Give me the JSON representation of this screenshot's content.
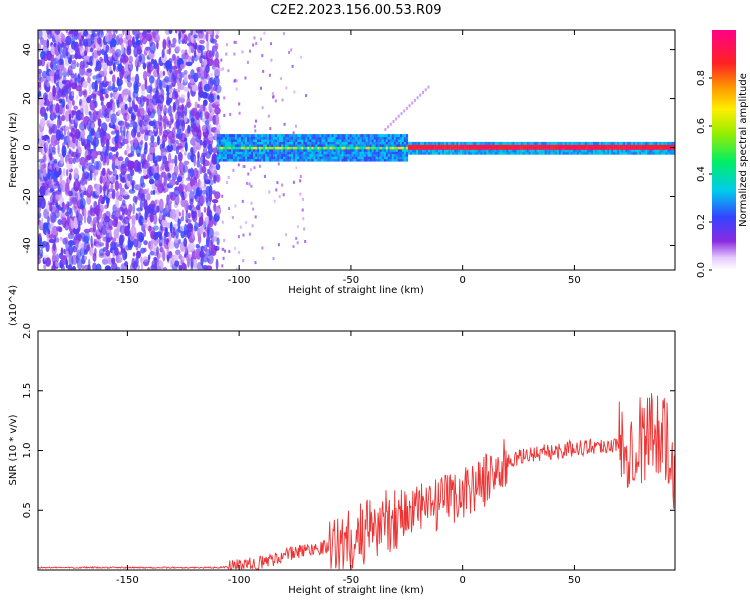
{
  "title": "C2E2.2023.156.00.53.R09",
  "chart_data": [
    {
      "type": "heatmap",
      "xlabel": "Height of straight line (km)",
      "ylabel": "Frequency (Hz)",
      "xlim": [
        -190,
        95
      ],
      "ylim": [
        -50,
        48
      ],
      "xticks": [
        -150,
        -100,
        -50,
        0,
        50
      ],
      "yticks": [
        -40,
        -20,
        0,
        20,
        40
      ],
      "colorbar": {
        "label": "Normalized spectral amplitude",
        "range": [
          0.0,
          1.0
        ],
        "ticks": [
          "0.0",
          "0.2",
          "0.4",
          "0.6",
          "0.8"
        ],
        "colormap": "rainbow (white, violet, blue, cyan, green, yellow, orange, red, magenta)"
      },
      "regions": [
        {
          "x_range": [
            -190,
            -110
          ],
          "frequency_range": [
            -50,
            48
          ],
          "amplitude": "low (0.1-0.3), broadband noise"
        },
        {
          "x_range": [
            -110,
            -25
          ],
          "frequency_range": [
            -5,
            5
          ],
          "amplitude": "medium (0.3-0.7)"
        },
        {
          "x_range": [
            -25,
            95
          ],
          "frequency_range": [
            -2,
            2
          ],
          "amplitude": "high (0.8-1.0), centered at 0 Hz"
        }
      ]
    },
    {
      "type": "line",
      "xlabel": "Height of straight line (km)",
      "ylabel": "SNR (10 * v/v)",
      "y_multiplier": "(x10^4)",
      "xlim": [
        -190,
        95
      ],
      "ylim": [
        0,
        2.0
      ],
      "xticks": [
        -150,
        -100,
        -50,
        0,
        50
      ],
      "yticks": [
        "0.5",
        "1.0",
        "1.5",
        "2.0"
      ],
      "color": "#ee3333",
      "series": [
        {
          "x": [
            -190,
            -150,
            -110,
            -100,
            -90,
            -80,
            -70,
            -60,
            -50,
            -40,
            -30,
            -20,
            -10,
            0,
            10,
            20,
            30,
            40,
            50,
            60,
            70,
            80,
            90,
            95
          ],
          "y": [
            0.02,
            0.02,
            0.02,
            0.03,
            0.06,
            0.12,
            0.17,
            0.2,
            0.25,
            0.35,
            0.45,
            0.5,
            0.55,
            0.65,
            0.75,
            0.9,
            0.97,
            0.99,
            1.02,
            1.04,
            1.05,
            1.1,
            1.2,
            0.6
          ]
        }
      ]
    }
  ]
}
